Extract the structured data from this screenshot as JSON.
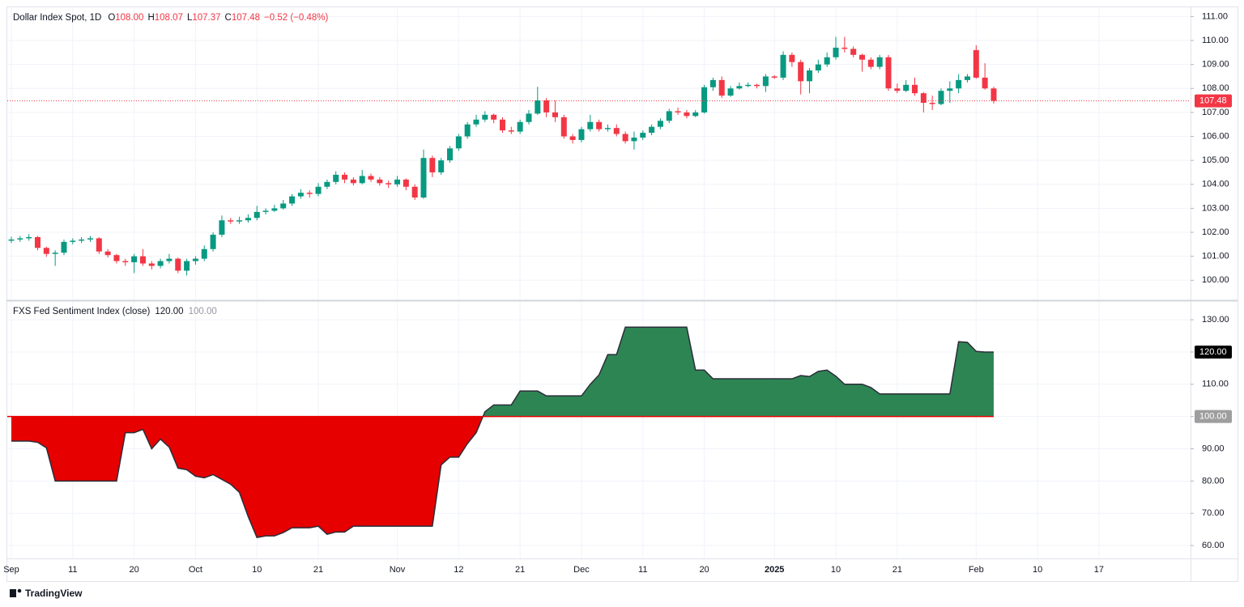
{
  "chart_data": [
    {
      "type": "candlestick",
      "title": "Dollar Index Spot, 1D",
      "ohlc_legend": [
        {
          "label": "O",
          "value": "108.00"
        },
        {
          "label": "H",
          "value": "108.07"
        },
        {
          "label": "L",
          "value": "107.37"
        },
        {
          "label": "C",
          "value": "107.48"
        }
      ],
      "change": "−0.52 (−0.48%)",
      "up_color": "#089981",
      "down_color": "#f23645",
      "categories": [
        "Sep",
        null,
        null,
        null,
        null,
        null,
        null,
        "11",
        null,
        null,
        null,
        null,
        null,
        null,
        "20",
        null,
        null,
        null,
        null,
        null,
        null,
        "Oct",
        null,
        null,
        null,
        null,
        null,
        null,
        "10",
        null,
        null,
        null,
        null,
        null,
        null,
        "21",
        null,
        null,
        null,
        null,
        null,
        null,
        null,
        null,
        "Nov",
        null,
        null,
        null,
        null,
        null,
        null,
        "12",
        null,
        null,
        null,
        null,
        null,
        null,
        "21",
        null,
        null,
        null,
        null,
        null,
        null,
        "Dec",
        null,
        null,
        null,
        null,
        null,
        null,
        "11",
        null,
        null,
        null,
        null,
        null,
        null,
        "20",
        null,
        null,
        null,
        null,
        null,
        null,
        null,
        "2025",
        null,
        null,
        null,
        null,
        null,
        null,
        "10",
        null,
        null,
        null,
        null,
        null,
        null,
        "21",
        null,
        null,
        null,
        null,
        null,
        null,
        null,
        null,
        "Feb",
        null,
        null,
        null,
        null,
        null,
        null,
        "10",
        null,
        null,
        null,
        null,
        null,
        null,
        "17"
      ],
      "candles": [
        [
          101.65,
          101.82,
          101.55,
          101.7
        ],
        [
          101.7,
          101.85,
          101.6,
          101.75
        ],
        [
          101.75,
          101.92,
          101.65,
          101.8
        ],
        [
          101.8,
          101.85,
          101.25,
          101.35
        ],
        [
          101.35,
          101.4,
          100.98,
          101.1
        ],
        [
          101.1,
          101.25,
          100.6,
          101.15
        ],
        [
          101.15,
          101.7,
          101.05,
          101.6
        ],
        [
          101.6,
          101.75,
          101.5,
          101.65
        ],
        [
          101.65,
          101.8,
          101.55,
          101.7
        ],
        [
          101.7,
          101.85,
          101.6,
          101.75
        ],
        [
          101.75,
          101.8,
          101.1,
          101.2
        ],
        [
          101.2,
          101.3,
          100.95,
          101.05
        ],
        [
          101.05,
          101.1,
          100.7,
          100.8
        ],
        [
          100.8,
          100.9,
          100.6,
          100.75
        ],
        [
          100.75,
          101.1,
          100.3,
          101.0
        ],
        [
          101.0,
          101.3,
          100.6,
          100.7
        ],
        [
          100.7,
          100.8,
          100.45,
          100.6
        ],
        [
          100.6,
          100.9,
          100.5,
          100.8
        ],
        [
          100.8,
          101.1,
          100.7,
          100.9
        ],
        [
          100.9,
          100.95,
          100.3,
          100.4
        ],
        [
          100.4,
          100.9,
          100.2,
          100.8
        ],
        [
          100.8,
          101.0,
          100.65,
          100.9
        ],
        [
          100.9,
          101.45,
          100.8,
          101.3
        ],
        [
          101.3,
          102.0,
          101.2,
          101.9
        ],
        [
          101.9,
          102.7,
          101.8,
          102.5
        ],
        [
          102.5,
          102.6,
          102.35,
          102.45
        ],
        [
          102.45,
          102.65,
          102.35,
          102.5
        ],
        [
          102.5,
          102.75,
          102.4,
          102.6
        ],
        [
          102.6,
          103.1,
          102.5,
          102.85
        ],
        [
          102.85,
          103.0,
          102.75,
          102.9
        ],
        [
          102.9,
          103.15,
          102.85,
          103.0
        ],
        [
          103.0,
          103.35,
          102.95,
          103.2
        ],
        [
          103.2,
          103.6,
          103.1,
          103.5
        ],
        [
          103.5,
          103.8,
          103.4,
          103.65
        ],
        [
          103.65,
          103.75,
          103.45,
          103.6
        ],
        [
          103.6,
          104.05,
          103.5,
          103.9
        ],
        [
          103.9,
          104.2,
          103.8,
          104.1
        ],
        [
          104.1,
          104.55,
          104.0,
          104.4
        ],
        [
          104.4,
          104.5,
          104.05,
          104.2
        ],
        [
          104.2,
          104.3,
          103.95,
          104.05
        ],
        [
          104.05,
          104.6,
          104.0,
          104.35
        ],
        [
          104.35,
          104.45,
          104.1,
          104.2
        ],
        [
          104.2,
          104.3,
          103.95,
          104.05
        ],
        [
          104.05,
          104.15,
          103.85,
          104.0
        ],
        [
          104.0,
          104.35,
          103.9,
          104.2
        ],
        [
          104.2,
          104.25,
          103.75,
          103.9
        ],
        [
          103.9,
          104.0,
          103.35,
          103.45
        ],
        [
          103.45,
          105.45,
          103.4,
          105.1
        ],
        [
          105.1,
          105.2,
          104.3,
          104.5
        ],
        [
          104.5,
          105.1,
          104.4,
          105.0
        ],
        [
          105.0,
          105.6,
          104.9,
          105.5
        ],
        [
          105.5,
          106.1,
          105.4,
          106.0
        ],
        [
          106.0,
          106.6,
          105.9,
          106.5
        ],
        [
          106.5,
          106.9,
          106.4,
          106.7
        ],
        [
          106.7,
          107.05,
          106.6,
          106.9
        ],
        [
          106.9,
          106.95,
          106.55,
          106.7
        ],
        [
          106.7,
          106.8,
          106.15,
          106.25
        ],
        [
          106.25,
          106.4,
          106.1,
          106.2
        ],
        [
          106.2,
          106.7,
          106.1,
          106.6
        ],
        [
          106.6,
          107.1,
          106.5,
          106.95
        ],
        [
          106.95,
          108.07,
          106.9,
          107.5
        ],
        [
          107.5,
          107.6,
          106.8,
          107.0
        ],
        [
          107.0,
          107.5,
          106.6,
          106.8
        ],
        [
          106.8,
          106.9,
          105.9,
          106.0
        ],
        [
          106.0,
          106.1,
          105.7,
          105.85
        ],
        [
          105.85,
          106.4,
          105.75,
          106.3
        ],
        [
          106.3,
          106.9,
          106.2,
          106.6
        ],
        [
          106.6,
          106.7,
          106.2,
          106.3
        ],
        [
          106.3,
          106.5,
          106.2,
          106.35
        ],
        [
          106.35,
          106.5,
          106.0,
          106.1
        ],
        [
          106.1,
          106.2,
          105.7,
          105.8
        ],
        [
          105.8,
          106.2,
          105.45,
          105.95
        ],
        [
          105.95,
          106.25,
          105.85,
          106.15
        ],
        [
          106.15,
          106.5,
          106.05,
          106.4
        ],
        [
          106.4,
          106.75,
          106.3,
          106.65
        ],
        [
          106.65,
          107.15,
          106.55,
          107.05
        ],
        [
          107.05,
          107.2,
          106.9,
          107.0
        ],
        [
          107.0,
          107.1,
          106.75,
          106.85
        ],
        [
          106.85,
          107.1,
          106.8,
          107.0
        ],
        [
          107.0,
          108.15,
          106.95,
          108.05
        ],
        [
          108.05,
          108.45,
          107.9,
          108.35
        ],
        [
          108.35,
          108.5,
          107.6,
          107.7
        ],
        [
          107.7,
          108.1,
          107.65,
          108.0
        ],
        [
          108.0,
          108.25,
          107.95,
          108.1
        ],
        [
          108.1,
          108.25,
          108.05,
          108.15
        ],
        [
          108.15,
          108.2,
          108.0,
          108.1
        ],
        [
          108.1,
          108.6,
          107.85,
          108.5
        ],
        [
          108.5,
          108.55,
          108.4,
          108.45
        ],
        [
          108.45,
          109.55,
          108.35,
          109.4
        ],
        [
          109.4,
          109.5,
          108.9,
          109.1
        ],
        [
          109.1,
          109.2,
          107.75,
          108.3
        ],
        [
          108.3,
          108.85,
          107.8,
          108.75
        ],
        [
          108.75,
          109.2,
          108.65,
          109.0
        ],
        [
          109.0,
          109.5,
          108.9,
          109.3
        ],
        [
          109.3,
          110.15,
          109.2,
          109.7
        ],
        [
          109.7,
          110.15,
          109.5,
          109.65
        ],
        [
          109.65,
          109.75,
          109.3,
          109.4
        ],
        [
          109.4,
          109.45,
          108.7,
          109.2
        ],
        [
          109.2,
          109.3,
          108.8,
          108.9
        ],
        [
          108.9,
          109.4,
          108.8,
          109.3
        ],
        [
          109.3,
          109.4,
          107.9,
          108.0
        ],
        [
          108.0,
          108.2,
          107.8,
          107.9
        ],
        [
          107.9,
          108.35,
          107.85,
          108.15
        ],
        [
          108.15,
          108.45,
          107.7,
          107.8
        ],
        [
          107.8,
          107.85,
          107.0,
          107.4
        ],
        [
          107.4,
          107.7,
          107.1,
          107.35
        ],
        [
          107.35,
          108.0,
          107.3,
          107.9
        ],
        [
          107.9,
          108.3,
          107.4,
          108.0
        ],
        [
          108.0,
          108.6,
          107.8,
          108.35
        ],
        [
          108.35,
          108.6,
          108.25,
          108.5
        ],
        [
          109.6,
          109.8,
          108.4,
          108.45
        ],
        [
          108.45,
          109.05,
          107.95,
          108.0
        ],
        [
          108.0,
          108.07,
          107.37,
          107.48
        ],
        null,
        null,
        null,
        null,
        null,
        null,
        null,
        null,
        null,
        null,
        null,
        null
      ],
      "ylim": [
        99.2,
        111.35
      ],
      "yticks": [
        {
          "value": 100,
          "label": "100.00"
        },
        {
          "value": 101,
          "label": "101.00"
        },
        {
          "value": 102,
          "label": "102.00"
        },
        {
          "value": 103,
          "label": "103.00"
        },
        {
          "value": 104,
          "label": "104.00"
        },
        {
          "value": 105,
          "label": "105.00"
        },
        {
          "value": 106,
          "label": "106.00"
        },
        {
          "value": 107,
          "label": "107.00"
        },
        {
          "value": 108,
          "label": "108.00"
        },
        {
          "value": 109,
          "label": "109.00"
        },
        {
          "value": 110,
          "label": "110.00"
        },
        {
          "value": 111,
          "label": "111.00"
        }
      ],
      "grid": true
    },
    {
      "type": "baseline_area",
      "title": "FXS Fed Sentiment Index (close)",
      "last_label": "120.00",
      "baseline": {
        "value": 100,
        "label": "100.00"
      },
      "above_color": "#2e8554",
      "below_color": "#e60000",
      "line_color": "#2a2e39",
      "values": [
        92.4,
        92.4,
        92.4,
        92,
        90.3,
        80,
        80,
        80,
        80,
        80,
        80,
        80,
        80,
        95,
        95,
        96,
        90,
        93,
        90.5,
        84,
        83.5,
        81.5,
        81,
        82,
        80.5,
        79,
        76.5,
        69,
        62.5,
        63,
        63,
        64,
        65.5,
        65.5,
        65.5,
        66,
        63.5,
        64.2,
        64.2,
        66,
        66,
        66,
        66,
        66,
        66,
        66,
        66,
        66,
        66,
        85,
        87.4,
        87.4,
        91.6,
        95,
        101.5,
        103.6,
        103.6,
        103.6,
        107.9,
        107.9,
        107.9,
        106.4,
        106.4,
        106.4,
        106.4,
        106.4,
        110,
        112.9,
        119.2,
        119.2,
        127.7,
        127.7,
        127.7,
        127.7,
        127.7,
        127.7,
        127.7,
        127.7,
        114.4,
        114.4,
        111.7,
        111.7,
        111.7,
        111.7,
        111.7,
        111.7,
        111.7,
        111.7,
        111.7,
        111.7,
        112.7,
        112.4,
        114,
        114.4,
        112.5,
        110,
        110,
        110,
        109,
        107,
        107,
        107,
        107,
        107,
        107,
        107,
        107,
        107,
        123.2,
        123,
        120.2,
        120,
        120,
        null,
        null,
        null,
        null,
        null,
        null,
        null,
        null,
        null,
        null,
        null,
        null
      ],
      "ylim": [
        56,
        135.8
      ],
      "yticks": [
        {
          "value": 60,
          "label": "60.00"
        },
        {
          "value": 70,
          "label": "70.00"
        },
        {
          "value": 80,
          "label": "80.00"
        },
        {
          "value": 90,
          "label": "90.00"
        },
        {
          "value": 100,
          "label": "100.00"
        },
        {
          "value": 110,
          "label": "110.00"
        },
        {
          "value": 120,
          "label": "120.00"
        },
        {
          "value": 130,
          "label": "130.00"
        }
      ],
      "grid": true
    }
  ],
  "footer": {
    "brand": "TradingView"
  }
}
